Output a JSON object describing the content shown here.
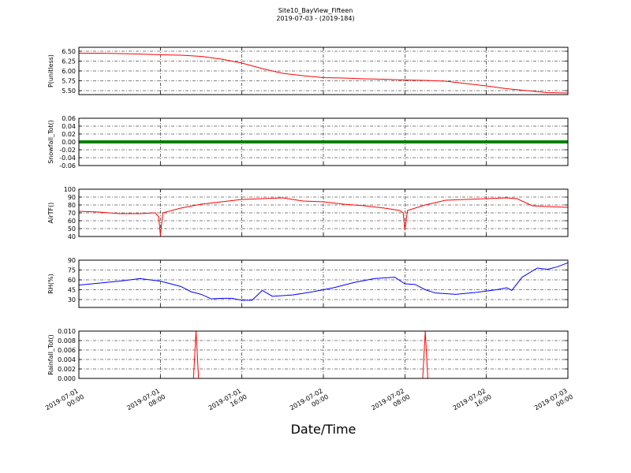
{
  "title": "Site10_BayView_Fifteen",
  "subtitle": "2019-07-03 - (2019-184)",
  "xlabel": "Date/Time",
  "xlim": [
    "2019-07-01 00:00",
    "2019-07-03 00:00"
  ],
  "xticks": [
    "2019-07-01 00:00",
    "2019-07-01 08:00",
    "2019-07-01 16:00",
    "2019-07-02 00:00",
    "2019-07-02 08:00",
    "2019-07-02 16:00",
    "2019-07-03 00:00"
  ],
  "chart_data": [
    {
      "type": "line",
      "ylabel": "P(unitless)",
      "grid": true,
      "ylim": [
        5.4,
        6.6
      ],
      "yticks": [
        {
          "value": 5.5,
          "label": "5.50"
        },
        5.75,
        {
          "value": 6,
          "label": "6.00"
        },
        6.25,
        {
          "value": 6.5,
          "label": "6.50"
        }
      ],
      "x": [
        "2019-07-01 00:00",
        "2019-07-01 02:00",
        "2019-07-01 04:00",
        "2019-07-01 06:00",
        "2019-07-01 08:00",
        "2019-07-01 10:00",
        "2019-07-01 12:00",
        "2019-07-01 14:00",
        "2019-07-01 16:00",
        "2019-07-01 18:00",
        "2019-07-01 20:00",
        "2019-07-01 22:00",
        "2019-07-02 00:00",
        "2019-07-02 02:00",
        "2019-07-02 04:00",
        "2019-07-02 06:00",
        "2019-07-02 08:00",
        "2019-07-02 10:00",
        "2019-07-02 12:00",
        "2019-07-02 14:00",
        "2019-07-02 16:00",
        "2019-07-02 18:00",
        "2019-07-02 20:00",
        "2019-07-02 22:00",
        "2019-07-03 00:00"
      ],
      "series": [
        {
          "color": "#ff0000",
          "values": [
            6.45,
            6.45,
            6.44,
            6.43,
            6.41,
            6.4,
            6.37,
            6.3,
            6.2,
            6.06,
            5.94,
            5.88,
            5.83,
            5.82,
            5.8,
            5.79,
            5.77,
            5.76,
            5.74,
            5.68,
            5.62,
            5.55,
            5.5,
            5.45,
            5.44
          ]
        }
      ]
    },
    {
      "type": "line",
      "ylabel": "Snowfall_Tot()",
      "grid": true,
      "ylim": [
        -0.06,
        0.06
      ],
      "yticks": [
        -0.06,
        -0.04,
        -0.02,
        {
          "value": 0,
          "label": "0.00"
        },
        0.02,
        0.04,
        0.06
      ],
      "x": [
        "2019-07-01 00:00",
        "2019-07-03 00:00"
      ],
      "series": [
        {
          "color": "#008000",
          "values": [
            0,
            0
          ]
        }
      ]
    },
    {
      "type": "line",
      "ylabel": "AirTF()",
      "grid": true,
      "ylim": [
        40,
        100
      ],
      "yticks": [
        40,
        50,
        60,
        70,
        80,
        90,
        100
      ],
      "x": [
        "2019-07-01 00:00",
        "2019-07-01 02:00",
        "2019-07-01 04:00",
        "2019-07-01 06:00",
        "2019-07-01 07:30",
        "2019-07-01 07:50",
        "2019-07-01 08:00",
        "2019-07-01 08:15",
        "2019-07-01 10:00",
        "2019-07-01 12:00",
        "2019-07-01 14:00",
        "2019-07-01 16:00",
        "2019-07-01 18:00",
        "2019-07-01 20:00",
        "2019-07-01 22:00",
        "2019-07-02 00:00",
        "2019-07-02 02:00",
        "2019-07-02 04:00",
        "2019-07-02 06:00",
        "2019-07-02 07:30",
        "2019-07-02 07:50",
        "2019-07-02 08:00",
        "2019-07-02 08:15",
        "2019-07-02 10:00",
        "2019-07-02 12:00",
        "2019-07-02 14:00",
        "2019-07-02 16:00",
        "2019-07-02 18:00",
        "2019-07-02 19:00",
        "2019-07-02 20:30",
        "2019-07-02 22:00",
        "2019-07-03 00:00"
      ],
      "series": [
        {
          "color": "#ff0000",
          "values": [
            72,
            71,
            69,
            69,
            70,
            65,
            42,
            70,
            76,
            81,
            84,
            87,
            88,
            89,
            85,
            84,
            81,
            79,
            76,
            73,
            70,
            48,
            73,
            80,
            86,
            87,
            88,
            89,
            88,
            79,
            78,
            77
          ]
        }
      ]
    },
    {
      "type": "line",
      "ylabel": "RH(%)",
      "grid": true,
      "ylim": [
        18,
        90
      ],
      "yticks": [
        30,
        45,
        60,
        75,
        90
      ],
      "x": [
        "2019-07-01 00:00",
        "2019-07-01 02:00",
        "2019-07-01 04:00",
        "2019-07-01 06:00",
        "2019-07-01 08:00",
        "2019-07-01 10:00",
        "2019-07-01 11:00",
        "2019-07-01 12:00",
        "2019-07-01 13:00",
        "2019-07-01 14:00",
        "2019-07-01 15:00",
        "2019-07-01 16:00",
        "2019-07-01 17:00",
        "2019-07-01 18:00",
        "2019-07-01 19:00",
        "2019-07-01 21:00",
        "2019-07-01 23:00",
        "2019-07-02 01:00",
        "2019-07-02 03:00",
        "2019-07-02 05:00",
        "2019-07-02 07:00",
        "2019-07-02 08:00",
        "2019-07-02 09:00",
        "2019-07-02 10:00",
        "2019-07-02 11:00",
        "2019-07-02 13:00",
        "2019-07-02 15:00",
        "2019-07-02 17:00",
        "2019-07-02 18:00",
        "2019-07-02 18:30",
        "2019-07-02 19:30",
        "2019-07-02 21:00",
        "2019-07-02 22:00",
        "2019-07-02 23:00",
        "2019-07-03 00:00"
      ],
      "series": [
        {
          "color": "#0000ff",
          "values": [
            52,
            55,
            58,
            62,
            58,
            50,
            42,
            38,
            31,
            32,
            32,
            29,
            29,
            44,
            35,
            37,
            42,
            48,
            56,
            62,
            64,
            54,
            53,
            45,
            40,
            38,
            41,
            45,
            48,
            44,
            64,
            78,
            76,
            80,
            86
          ]
        }
      ]
    },
    {
      "type": "line",
      "ylabel": "Rainfall_Tot()",
      "grid": true,
      "ylim": [
        0,
        0.01
      ],
      "yticks": [
        {
          "value": 0,
          "label": "0.000"
        },
        0.002,
        0.004,
        0.006,
        0.008,
        {
          "value": 0.01,
          "label": "0.010"
        }
      ],
      "x": [
        "2019-07-01 00:00",
        "2019-07-01 11:15",
        "2019-07-01 11:30",
        "2019-07-01 11:45",
        "2019-07-02 09:45",
        "2019-07-02 10:00",
        "2019-07-02 10:15",
        "2019-07-03 00:00"
      ],
      "series": [
        {
          "color": "#ff0000",
          "values": [
            0,
            0,
            0.01,
            0,
            0,
            0.01,
            0,
            0
          ]
        }
      ]
    }
  ]
}
